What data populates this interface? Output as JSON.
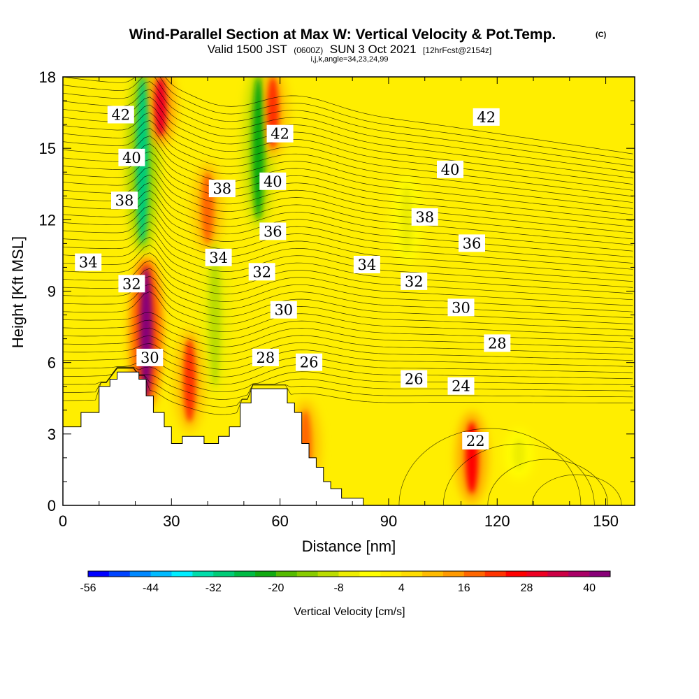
{
  "title": "Wind-Parallel Section at Max W: Vertical Velocity & Pot.Temp.",
  "copyright": "(C)",
  "subtitle": {
    "valid": "Valid 1500 JST",
    "utc": "(0600Z)",
    "date": "SUN 3 Oct 2021",
    "forecast": "[12hrFcst@2154z]"
  },
  "grid_info": "i,j,k,angle=34,23,24,99",
  "chart_data": {
    "type": "heatmap",
    "xlabel": "Distance [nm]",
    "ylabel": "Height [Kft MSL]",
    "xlim": [
      0,
      158
    ],
    "ylim": [
      0,
      18
    ],
    "x_ticks": [
      0,
      30,
      60,
      90,
      120,
      150
    ],
    "y_ticks": [
      0,
      3,
      6,
      9,
      12,
      15,
      18
    ],
    "colorbar": {
      "label": "Vertical Velocity [cm/s]",
      "range": [
        -56,
        44
      ],
      "step": 4,
      "tick_labels": [
        "-56",
        "-44",
        "-32",
        "-20",
        "-8",
        "4",
        "16",
        "28",
        "40"
      ],
      "colors": [
        "#0000ff",
        "#0044ff",
        "#0088ff",
        "#00bbff",
        "#00eeff",
        "#00ddaa",
        "#00cc77",
        "#00bb44",
        "#11aa11",
        "#55bb00",
        "#88cc00",
        "#bbdd00",
        "#eeee00",
        "#ffff00",
        "#ffee00",
        "#ffdd00",
        "#ffbb00",
        "#ff9900",
        "#ff6600",
        "#ff3300",
        "#ff0000",
        "#ee0022",
        "#cc0044",
        "#aa0066",
        "#880077"
      ]
    },
    "terrain_top_kft": [
      [
        0,
        3.3
      ],
      [
        5,
        3.9
      ],
      [
        10,
        5.0
      ],
      [
        13,
        5.3
      ],
      [
        15,
        5.6
      ],
      [
        21,
        5.3
      ],
      [
        23,
        4.6
      ],
      [
        25,
        3.9
      ],
      [
        28,
        3.3
      ],
      [
        30,
        2.6
      ],
      [
        33,
        2.9
      ],
      [
        37,
        2.9
      ],
      [
        39,
        2.6
      ],
      [
        43,
        2.9
      ],
      [
        46,
        3.3
      ],
      [
        49,
        4.3
      ],
      [
        52,
        4.9
      ],
      [
        58,
        4.9
      ],
      [
        62,
        4.3
      ],
      [
        64,
        3.9
      ],
      [
        66,
        2.6
      ],
      [
        68,
        2.0
      ],
      [
        70,
        1.6
      ],
      [
        72,
        1.0
      ],
      [
        74,
        0.7
      ],
      [
        77,
        0.3
      ],
      [
        80,
        0.3
      ],
      [
        83,
        0.0
      ]
    ],
    "updraft_cores": [
      {
        "x": 23,
        "ymin": 4.5,
        "ymax": 10.0,
        "w": 40
      },
      {
        "x": 27,
        "ymin": 15.5,
        "ymax": 18.0,
        "w": 28
      },
      {
        "x": 35,
        "ymin": 3.5,
        "ymax": 7.0,
        "w": 20
      },
      {
        "x": 40,
        "ymin": 11.0,
        "ymax": 14.0,
        "w": 16
      },
      {
        "x": 58,
        "ymin": 15.0,
        "ymax": 18.0,
        "w": 20
      },
      {
        "x": 67,
        "ymin": 1.0,
        "ymax": 4.0,
        "w": 16
      },
      {
        "x": 113,
        "ymin": 0.5,
        "ymax": 3.5,
        "w": 24
      }
    ],
    "downdraft_bands": [
      {
        "x": 22,
        "ymin": 11.0,
        "ymax": 18.0,
        "w": -32
      },
      {
        "x": 42,
        "ymin": 5.0,
        "ymax": 11.0,
        "w": -12
      },
      {
        "x": 54,
        "ymin": 12.0,
        "ymax": 18.0,
        "w": -24
      },
      {
        "x": 95,
        "ymin": 10.5,
        "ymax": 13.5,
        "w": -8
      },
      {
        "x": 126,
        "ymin": 1.5,
        "ymax": 2.8,
        "w": -8
      }
    ],
    "isentropes_label": "Pot.Temp.",
    "contour_labels": [
      {
        "text": "42",
        "x": 16,
        "y": 16.4
      },
      {
        "text": "40",
        "x": 19,
        "y": 14.6
      },
      {
        "text": "38",
        "x": 17,
        "y": 12.8
      },
      {
        "text": "34",
        "x": 7,
        "y": 10.2
      },
      {
        "text": "32",
        "x": 19,
        "y": 9.3
      },
      {
        "text": "30",
        "x": 24,
        "y": 6.2
      },
      {
        "text": "38",
        "x": 44,
        "y": 13.3
      },
      {
        "text": "34",
        "x": 43,
        "y": 10.4
      },
      {
        "text": "42",
        "x": 60,
        "y": 15.6
      },
      {
        "text": "40",
        "x": 58,
        "y": 13.6
      },
      {
        "text": "36",
        "x": 58,
        "y": 11.5
      },
      {
        "text": "32",
        "x": 55,
        "y": 9.8
      },
      {
        "text": "30",
        "x": 61,
        "y": 8.2
      },
      {
        "text": "28",
        "x": 56,
        "y": 6.2
      },
      {
        "text": "26",
        "x": 68,
        "y": 6.0
      },
      {
        "text": "34",
        "x": 84,
        "y": 10.1
      },
      {
        "text": "32",
        "x": 97,
        "y": 9.4
      },
      {
        "text": "38",
        "x": 100,
        "y": 12.1
      },
      {
        "text": "36",
        "x": 113,
        "y": 11.0
      },
      {
        "text": "40",
        "x": 107,
        "y": 14.1
      },
      {
        "text": "42",
        "x": 117,
        "y": 16.3
      },
      {
        "text": "30",
        "x": 110,
        "y": 8.3
      },
      {
        "text": "28",
        "x": 120,
        "y": 6.8
      },
      {
        "text": "26",
        "x": 97,
        "y": 5.3
      },
      {
        "text": "24",
        "x": 110,
        "y": 5.0
      },
      {
        "text": "22",
        "x": 114,
        "y": 2.7
      }
    ]
  }
}
